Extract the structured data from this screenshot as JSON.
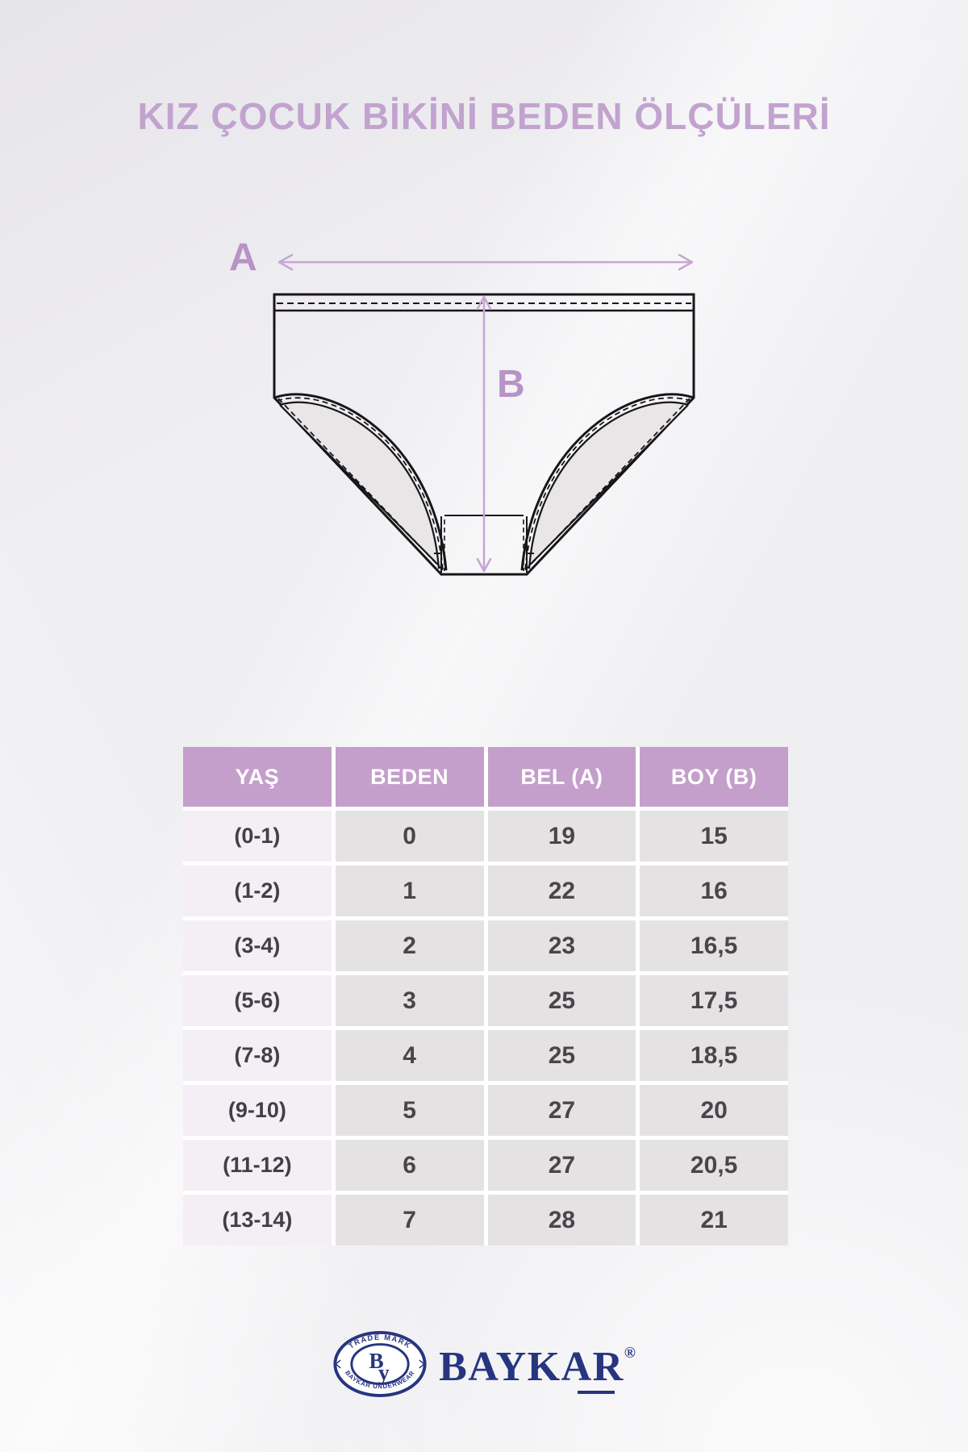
{
  "page": {
    "title": "KIZ ÇOCUK BİKİNİ BEDEN ÖLÇÜLERİ"
  },
  "diagram": {
    "width_label": "A",
    "height_label": "B"
  },
  "table": {
    "headers": [
      "YAŞ",
      "BEDEN",
      "BEL (A)",
      "BOY (B)"
    ],
    "rows": [
      [
        "(0-1)",
        "0",
        "19",
        "15"
      ],
      [
        "(1-2)",
        "1",
        "22",
        "16"
      ],
      [
        "(3-4)",
        "2",
        "23",
        "16,5"
      ],
      [
        "(5-6)",
        "3",
        "25",
        "17,5"
      ],
      [
        "(7-8)",
        "4",
        "25",
        "18,5"
      ],
      [
        "(9-10)",
        "5",
        "27",
        "20"
      ],
      [
        "(11-12)",
        "6",
        "27",
        "20,5"
      ],
      [
        "(13-14)",
        "7",
        "28",
        "21"
      ]
    ]
  },
  "chart_data": {
    "type": "table",
    "title": "KIZ ÇOCUK BİKİNİ BEDEN ÖLÇÜLERİ",
    "columns": [
      "YAŞ",
      "BEDEN",
      "BEL (A)",
      "BOY (B)"
    ],
    "rows": [
      [
        "(0-1)",
        "0",
        "19",
        "15"
      ],
      [
        "(1-2)",
        "1",
        "22",
        "16"
      ],
      [
        "(3-4)",
        "2",
        "23",
        "16,5"
      ],
      [
        "(5-6)",
        "3",
        "25",
        "17,5"
      ],
      [
        "(7-8)",
        "4",
        "25",
        "18,5"
      ],
      [
        "(9-10)",
        "5",
        "27",
        "20"
      ],
      [
        "(11-12)",
        "6",
        "27",
        "20,5"
      ],
      [
        "(13-14)",
        "7",
        "28",
        "21"
      ]
    ]
  },
  "logo": {
    "emblem_top": "TRADE MARK",
    "emblem_bottom": "BAYKAR UNDERWEAR",
    "monogram_b": "B",
    "monogram_y": "y",
    "wordmark": "BAYKAR",
    "registered": "®"
  },
  "colors": {
    "title_purple": "#c2a3cf",
    "header_purple": "#c49fcb",
    "age_cell_bg": "#f4eef5",
    "value_cell_bg": "#e4e2e3",
    "arrow_purple": "#c6a7d2",
    "logo_navy": "#27357f",
    "background": "#efeef1"
  }
}
